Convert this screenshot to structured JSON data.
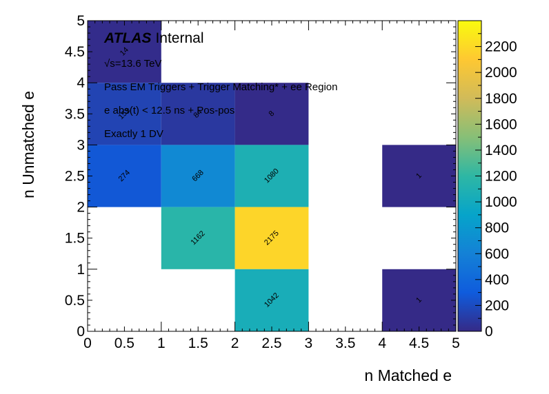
{
  "chart_data": {
    "type": "heatmap",
    "xlabel": "n Matched e",
    "ylabel": "n Unmatched e",
    "xlim": [
      0,
      5
    ],
    "ylim": [
      0,
      5
    ],
    "zlim": [
      0,
      2400
    ],
    "x_ticks": [
      "0",
      "0.5",
      "1",
      "1.5",
      "2",
      "2.5",
      "3",
      "3.5",
      "4",
      "4.5",
      "5"
    ],
    "y_ticks": [
      "0",
      "0.5",
      "1",
      "1.5",
      "2",
      "2.5",
      "3",
      "3.5",
      "4",
      "4.5",
      "5"
    ],
    "z_ticks": [
      "0",
      "200",
      "400",
      "600",
      "800",
      "1000",
      "1200",
      "1400",
      "1600",
      "1800",
      "2000",
      "2200"
    ],
    "bin_edges_x": [
      0,
      1,
      2,
      3,
      4,
      5
    ],
    "bin_edges_y": [
      0,
      1,
      2,
      3,
      4,
      5
    ],
    "cells": [
      {
        "x": [
          0,
          1
        ],
        "y": [
          4,
          5
        ],
        "value": 14
      },
      {
        "x": [
          0,
          1
        ],
        "y": [
          3,
          4
        ],
        "value": 153
      },
      {
        "x": [
          1,
          2
        ],
        "y": [
          3,
          4
        ],
        "value": 84
      },
      {
        "x": [
          2,
          3
        ],
        "y": [
          3,
          4
        ],
        "value": 8
      },
      {
        "x": [
          0,
          1
        ],
        "y": [
          2,
          3
        ],
        "value": 274
      },
      {
        "x": [
          1,
          2
        ],
        "y": [
          2,
          3
        ],
        "value": 668
      },
      {
        "x": [
          2,
          3
        ],
        "y": [
          2,
          3
        ],
        "value": 1080
      },
      {
        "x": [
          4,
          5
        ],
        "y": [
          2,
          3
        ],
        "value": 1
      },
      {
        "x": [
          1,
          2
        ],
        "y": [
          1,
          2
        ],
        "value": 1162
      },
      {
        "x": [
          2,
          3
        ],
        "y": [
          1,
          2
        ],
        "value": 2175
      },
      {
        "x": [
          2,
          3
        ],
        "y": [
          0,
          1
        ],
        "value": 1042
      },
      {
        "x": [
          4,
          5
        ],
        "y": [
          0,
          1
        ],
        "value": 1
      }
    ],
    "colormap": [
      "#352a87",
      "#0f5cdd",
      "#1481d6",
      "#06a4ca",
      "#2eb7a4",
      "#87bf77",
      "#d1bb59",
      "#fec832",
      "#f9fb0e"
    ],
    "annotations": {
      "atlas_bold": "ATLAS",
      "atlas_status": "Internal",
      "energy": "√s=13.6 TeV",
      "selection_1": "Pass EM Triggers + Trigger Matching* + ee Region",
      "selection_2": "e abs(t) < 12.5 ns + Pos-pos",
      "selection_3": "Exactly 1 DV"
    },
    "legend": "none",
    "grid": false
  }
}
